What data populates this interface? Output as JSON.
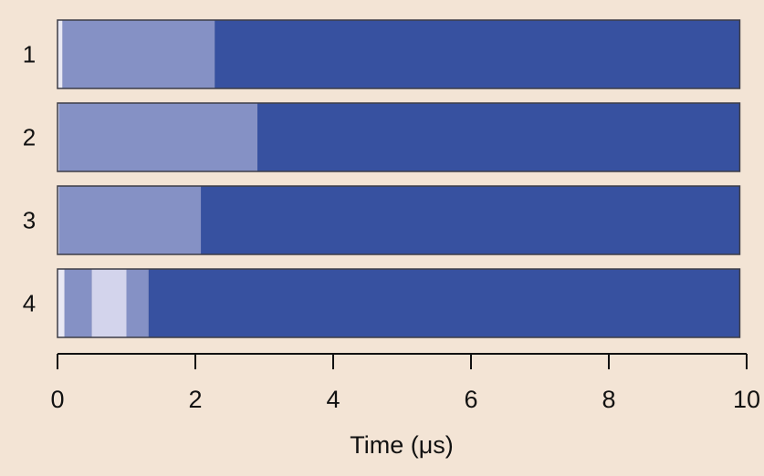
{
  "chart_data": {
    "type": "bar",
    "orientation": "horizontal-timeline",
    "xlabel": "Time (μs)",
    "xlim": [
      0,
      10
    ],
    "xticks": [
      "0",
      "2",
      "4",
      "6",
      "8",
      "10"
    ],
    "grid": false,
    "legend": "none",
    "rows": [
      {
        "label": "1",
        "segments": [
          {
            "start": 0.0,
            "end": 0.07,
            "color": "#e8e8f4"
          },
          {
            "start": 0.07,
            "end": 2.28,
            "color": "#8591c5"
          },
          {
            "start": 2.28,
            "end": 9.9,
            "color": "#3751a0"
          }
        ]
      },
      {
        "label": "2",
        "segments": [
          {
            "start": 0.0,
            "end": 0.02,
            "color": "#e8e8f4"
          },
          {
            "start": 0.02,
            "end": 2.9,
            "color": "#8591c5"
          },
          {
            "start": 2.9,
            "end": 9.9,
            "color": "#3751a0"
          }
        ]
      },
      {
        "label": "3",
        "segments": [
          {
            "start": 0.0,
            "end": 0.02,
            "color": "#e8e8f4"
          },
          {
            "start": 0.02,
            "end": 2.08,
            "color": "#8591c5"
          },
          {
            "start": 2.08,
            "end": 9.9,
            "color": "#3751a0"
          }
        ]
      },
      {
        "label": "4",
        "segments": [
          {
            "start": 0.0,
            "end": 0.1,
            "color": "#e8e8f4"
          },
          {
            "start": 0.1,
            "end": 0.5,
            "color": "#8591c5"
          },
          {
            "start": 0.5,
            "end": 1.0,
            "color": "#d3d4ec"
          },
          {
            "start": 1.0,
            "end": 1.32,
            "color": "#8591c5"
          },
          {
            "start": 1.32,
            "end": 9.9,
            "color": "#3751a0"
          }
        ]
      }
    ]
  }
}
